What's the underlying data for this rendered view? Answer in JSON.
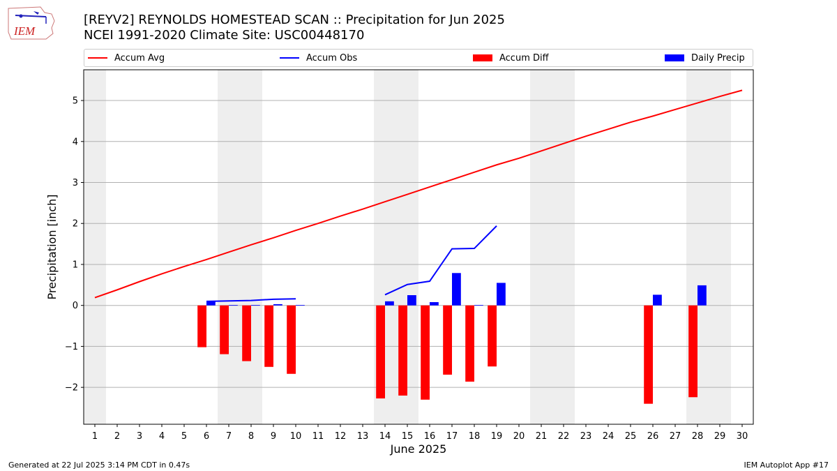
{
  "header": {
    "title_line1": "[REYV2] REYNOLDS HOMESTEAD SCAN :: Precipitation for Jun 2025",
    "title_line2": "NCEI 1991-2020 Climate Site: USC00448170",
    "logo_text": "IEM"
  },
  "legend": {
    "items": [
      {
        "label": "Accum Avg",
        "kind": "line",
        "color": "#ff0000"
      },
      {
        "label": "Accum Obs",
        "kind": "line",
        "color": "#0000ff"
      },
      {
        "label": "Accum Diff",
        "kind": "box",
        "color": "#ff0000"
      },
      {
        "label": "Daily Precip",
        "kind": "box",
        "color": "#0000ff"
      }
    ]
  },
  "footer": {
    "left": "Generated at 22 Jul 2025 3:14 PM CDT in 0.47s",
    "right": "IEM Autoplot App #17"
  },
  "chart_data": {
    "type": "bar",
    "xlabel": "June 2025",
    "ylabel": "Precipitation [inch]",
    "x": [
      1,
      2,
      3,
      4,
      5,
      6,
      7,
      8,
      9,
      10,
      11,
      12,
      13,
      14,
      15,
      16,
      17,
      18,
      19,
      20,
      21,
      22,
      23,
      24,
      25,
      26,
      27,
      28,
      29,
      30
    ],
    "xlim": [
      0.5,
      30.5
    ],
    "ylim": [
      -2.9,
      5.75
    ],
    "yticks": [
      -2,
      -1,
      0,
      1,
      2,
      3,
      4,
      5
    ],
    "grid": "horizontal",
    "weekend_shading": [
      [
        0.5,
        1.5
      ],
      [
        6.5,
        8.5
      ],
      [
        13.5,
        15.5
      ],
      [
        20.5,
        22.5
      ],
      [
        27.5,
        29.5
      ]
    ],
    "accum_avg": {
      "color": "#ff0000",
      "x": [
        1,
        2,
        3,
        4,
        5,
        6,
        7,
        8,
        9,
        10,
        11,
        12,
        13,
        14,
        15,
        16,
        17,
        18,
        19,
        20,
        21,
        22,
        23,
        24,
        25,
        26,
        27,
        28,
        29,
        30
      ],
      "y": [
        0.19,
        0.38,
        0.58,
        0.77,
        0.95,
        1.12,
        1.3,
        1.48,
        1.65,
        1.83,
        2.0,
        2.18,
        2.35,
        2.53,
        2.71,
        2.89,
        3.07,
        3.25,
        3.43,
        3.59,
        3.77,
        3.95,
        4.13,
        4.3,
        4.47,
        4.62,
        4.78,
        4.94,
        5.1,
        5.25
      ]
    },
    "accum_obs": {
      "color": "#0000ff",
      "x": [
        6,
        7,
        8,
        9,
        10,
        14,
        15,
        16,
        17,
        18,
        19
      ],
      "y": [
        0.1,
        0.11,
        0.12,
        0.15,
        0.16,
        0.26,
        0.51,
        0.59,
        1.38,
        1.39,
        1.94
      ],
      "segments": [
        [
          6,
          10
        ],
        [
          14,
          19
        ]
      ]
    },
    "accum_diff": {
      "color": "#ff0000",
      "x": [
        6,
        7,
        8,
        9,
        10,
        14,
        15,
        16,
        17,
        18,
        19,
        26,
        28
      ],
      "y": [
        -1.02,
        -1.19,
        -1.36,
        -1.5,
        -1.67,
        -2.27,
        -2.2,
        -2.3,
        -1.69,
        -1.86,
        -1.49,
        -2.4,
        -2.24
      ]
    },
    "daily_precip": {
      "color": "#0000ff",
      "x": [
        6,
        7,
        8,
        9,
        10,
        14,
        15,
        16,
        17,
        18,
        19,
        26,
        28
      ],
      "y": [
        0.1,
        0.01,
        0.01,
        0.03,
        0.01,
        0.1,
        0.25,
        0.08,
        0.79,
        0.01,
        0.55,
        0.26,
        0.49
      ]
    }
  }
}
